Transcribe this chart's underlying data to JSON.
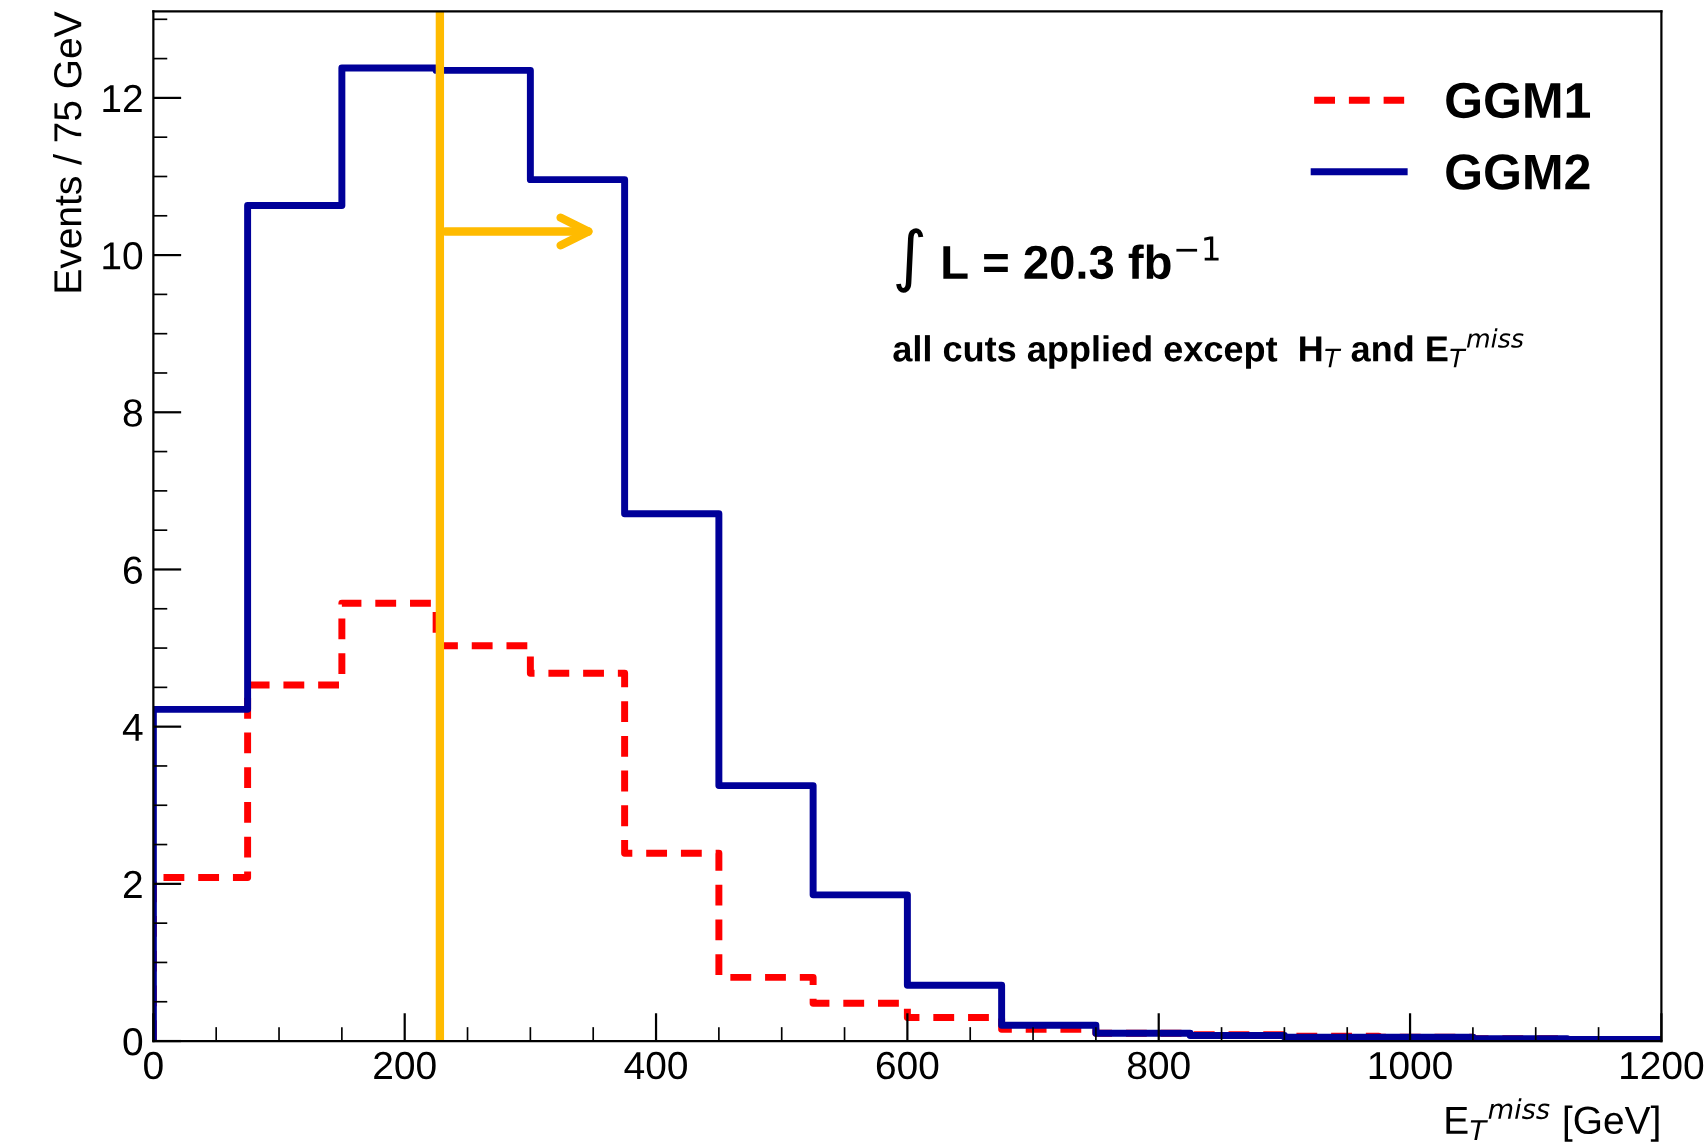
{
  "chart_data": {
    "type": "histogram",
    "xlabel": "E$_{T}$$^{miss}$ [GeV]",
    "ylabel": "Events / 75 GeV",
    "bins": [
      0,
      75,
      150,
      225,
      300,
      375,
      450,
      525,
      600,
      675,
      750,
      825,
      900,
      975,
      1050,
      1125,
      1200
    ],
    "series": [
      {
        "name": "GGM1",
        "color": "#ff0000",
        "line_style": "dashed",
        "values": [
          2.08,
          4.53,
          5.57,
          5.03,
          4.68,
          2.39,
          0.81,
          0.48,
          0.3,
          0.15,
          0.1,
          0.08,
          0.06,
          0.05,
          0.03,
          0.02
        ]
      },
      {
        "name": "GGM2",
        "color": "#000099",
        "line_style": "solid",
        "values": [
          4.22,
          10.63,
          12.38,
          12.35,
          10.96,
          6.71,
          3.25,
          1.86,
          0.71,
          0.2,
          0.1,
          0.07,
          0.05,
          0.05,
          0.03,
          0.02
        ]
      }
    ],
    "xlim": [
      0,
      1200
    ],
    "xticks": [
      0,
      200,
      400,
      600,
      800,
      1000,
      1200
    ],
    "ylim": [
      0,
      13.1
    ],
    "yticks": [
      0,
      2,
      4,
      6,
      8,
      10,
      12
    ],
    "ref_lines": [
      {
        "axis": "x",
        "value": 228,
        "color": "#ffbb00"
      }
    ],
    "annotations": [
      "∫ L = 20.3 fb$^{−1}$",
      "all cuts applied except  H$_{T}$ and E$_{T}$$^{miss}$"
    ],
    "legend": "top right",
    "grid": false
  }
}
